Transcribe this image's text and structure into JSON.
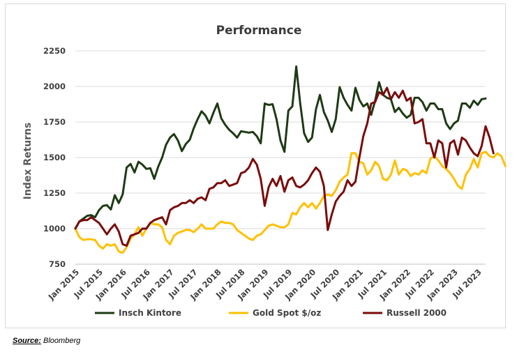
{
  "source_label": "Source:",
  "source_text": "Bloomberg",
  "chart_data": {
    "type": "line",
    "title": "Performance",
    "ylabel": "Index Returns",
    "xlabel": "",
    "ylim": [
      750,
      2250
    ],
    "yticks": [
      750,
      1000,
      1250,
      1500,
      1750,
      2000,
      2250
    ],
    "grid": "horizontal",
    "legend_position": "bottom",
    "x_tick_labels": [
      "Jan 2015",
      "Jul 2015",
      "Jan 2016",
      "Jul 2016",
      "Jan 2017",
      "Jul 2017",
      "Jan 2018",
      "Jul 2018",
      "Jan 2019",
      "Jul 2019",
      "Jan 2020",
      "Jul 2020",
      "Jan 2021",
      "Jul 2021",
      "Jan 2022",
      "Jul 2022",
      "Jan 2023",
      "Jul 2023"
    ],
    "x_start": "Jan 2015",
    "frequency": "monthly",
    "series": [
      {
        "name": "Insch Kintore",
        "color": "#1e3a14",
        "values": [
          1000,
          1050,
          1070,
          1090,
          1095,
          1080,
          1130,
          1160,
          1165,
          1135,
          1235,
          1180,
          1240,
          1430,
          1455,
          1395,
          1470,
          1450,
          1420,
          1425,
          1350,
          1435,
          1500,
          1590,
          1640,
          1665,
          1620,
          1545,
          1595,
          1625,
          1705,
          1770,
          1825,
          1795,
          1740,
          1815,
          1880,
          1775,
          1730,
          1695,
          1670,
          1640,
          1685,
          1680,
          1675,
          1680,
          1650,
          1600,
          1880,
          1870,
          1875,
          1770,
          1620,
          1540,
          1830,
          1860,
          2140,
          1880,
          1670,
          1610,
          1640,
          1840,
          1940,
          1820,
          1760,
          1680,
          1770,
          1995,
          1920,
          1870,
          1830,
          1990,
          1905,
          1860,
          1880,
          1800,
          1900,
          2030,
          1940,
          1920,
          1910,
          1820,
          1850,
          1810,
          1780,
          1800,
          1920,
          1920,
          1890,
          1830,
          1880,
          1880,
          1840,
          1840,
          1740,
          1700,
          1740,
          1760,
          1880,
          1880,
          1850,
          1900,
          1870,
          1910,
          1915
        ]
      },
      {
        "name": "Gold Spot $/oz",
        "color": "#ffc000",
        "values": [
          1000,
          940,
          920,
          925,
          925,
          920,
          880,
          860,
          890,
          880,
          890,
          840,
          830,
          870,
          930,
          960,
          1010,
          950,
          1000,
          1040,
          1030,
          1030,
          1010,
          920,
          890,
          950,
          970,
          980,
          990,
          990,
          975,
          1000,
          1030,
          1000,
          1000,
          1000,
          1030,
          1050,
          1040,
          1040,
          1030,
          990,
          970,
          950,
          930,
          920,
          950,
          960,
          990,
          1020,
          1030,
          1020,
          1010,
          1010,
          1030,
          1110,
          1100,
          1150,
          1180,
          1150,
          1180,
          1140,
          1180,
          1230,
          1240,
          1230,
          1270,
          1330,
          1360,
          1380,
          1530,
          1530,
          1470,
          1460,
          1380,
          1410,
          1470,
          1440,
          1350,
          1340,
          1380,
          1480,
          1380,
          1420,
          1410,
          1370,
          1390,
          1380,
          1410,
          1390,
          1490,
          1510,
          1480,
          1440,
          1420,
          1390,
          1350,
          1300,
          1280,
          1380,
          1420,
          1490,
          1430,
          1530,
          1540,
          1510,
          1500,
          1530,
          1510,
          1440
        ]
      },
      {
        "name": "Russell 2000",
        "color": "#7a0b0b",
        "values": [
          1000,
          1050,
          1060,
          1060,
          1080,
          1060,
          1040,
          1000,
          960,
          1000,
          1030,
          980,
          890,
          880,
          950,
          960,
          970,
          1000,
          1000,
          1040,
          1060,
          1070,
          1080,
          1030,
          1130,
          1150,
          1160,
          1180,
          1180,
          1200,
          1180,
          1210,
          1220,
          1200,
          1280,
          1290,
          1320,
          1320,
          1340,
          1300,
          1310,
          1320,
          1390,
          1400,
          1430,
          1490,
          1450,
          1350,
          1160,
          1290,
          1350,
          1300,
          1370,
          1260,
          1340,
          1360,
          1300,
          1290,
          1310,
          1340,
          1390,
          1430,
          1400,
          1300,
          990,
          1100,
          1190,
          1230,
          1260,
          1340,
          1300,
          1330,
          1500,
          1650,
          1740,
          1880,
          1890,
          1960,
          1940,
          1990,
          1910,
          1960,
          1920,
          1970,
          1900,
          1920,
          1740,
          1750,
          1770,
          1600,
          1600,
          1500,
          1620,
          1600,
          1430,
          1600,
          1620,
          1520,
          1640,
          1620,
          1570,
          1530,
          1510,
          1580,
          1720,
          1640,
          1530
        ]
      }
    ]
  }
}
